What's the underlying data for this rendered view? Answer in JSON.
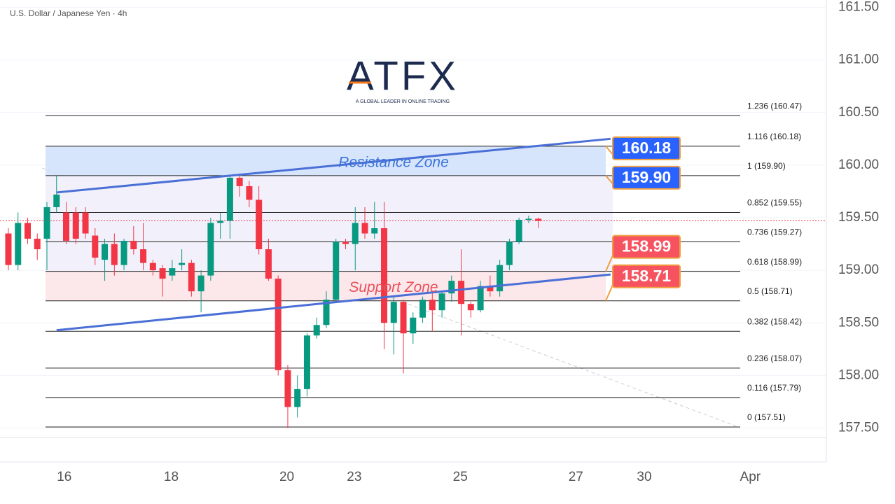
{
  "chart_data": {
    "type": "candlestick",
    "title": "U.S. Dollar / Japanese Yen · 4h",
    "logo": {
      "name": "ATFX",
      "tagline": "A GLOBAL LEADER IN ONLINE TRADING"
    },
    "x": [
      0,
      1,
      2,
      3,
      4,
      5,
      6,
      7,
      8,
      9,
      10,
      11,
      12,
      13,
      14,
      15,
      16,
      17,
      18,
      19,
      20,
      21,
      22,
      23,
      24,
      25,
      26,
      27,
      28,
      29,
      30,
      31,
      32,
      33,
      34,
      35,
      36,
      37,
      38,
      39,
      40,
      41,
      42,
      43,
      44,
      45,
      46,
      47,
      48,
      49,
      50,
      51,
      52,
      53,
      54,
      55
    ],
    "open": [
      159.35,
      159.05,
      159.45,
      159.3,
      159.3,
      159.6,
      159.55,
      159.55,
      159.55,
      159.33,
      159.1,
      159.25,
      159.05,
      159.28,
      159.2,
      159.07,
      159.02,
      158.95,
      159.05,
      159.07,
      158.8,
      158.95,
      159.45,
      159.47,
      159.88,
      159.8,
      159.67,
      159.2,
      158.92,
      158.05,
      157.7,
      157.87,
      158.38,
      158.48,
      158.72,
      159.27,
      159.25,
      159.45,
      159.35,
      159.4,
      158.5,
      158.7,
      158.4,
      158.55,
      158.72,
      158.62,
      158.78,
      158.9,
      158.68,
      158.62,
      158.85,
      158.8,
      159.05,
      159.27,
      159.48,
      159.49
    ],
    "high": [
      159.4,
      159.55,
      159.5,
      159.35,
      159.65,
      159.9,
      159.65,
      159.6,
      159.6,
      159.4,
      159.3,
      159.35,
      159.3,
      159.42,
      159.45,
      159.1,
      159.05,
      159.1,
      159.2,
      159.1,
      159.0,
      159.5,
      159.55,
      159.9,
      159.9,
      159.85,
      159.8,
      159.3,
      158.95,
      158.1,
      158.0,
      158.4,
      158.55,
      158.8,
      159.3,
      159.3,
      159.6,
      159.6,
      159.65,
      159.65,
      158.75,
      158.72,
      158.6,
      158.75,
      158.8,
      158.8,
      158.95,
      159.2,
      158.7,
      158.9,
      158.95,
      159.1,
      159.3,
      159.5,
      159.52,
      159.5
    ],
    "low": [
      159.0,
      159.0,
      159.25,
      159.1,
      159.0,
      159.55,
      159.25,
      159.25,
      159.3,
      159.05,
      158.9,
      158.95,
      159.0,
      159.15,
      159.0,
      158.95,
      158.75,
      158.9,
      159.0,
      158.75,
      158.6,
      158.9,
      159.3,
      159.3,
      159.7,
      159.6,
      159.15,
      158.9,
      158.0,
      157.5,
      157.6,
      157.8,
      158.35,
      158.45,
      158.7,
      159.2,
      159.0,
      159.3,
      159.3,
      158.25,
      158.2,
      158.02,
      158.3,
      158.5,
      158.42,
      158.55,
      158.7,
      158.38,
      158.55,
      158.6,
      158.75,
      158.75,
      159.0,
      159.25,
      159.45,
      159.4
    ],
    "close": [
      159.05,
      159.45,
      159.3,
      159.2,
      159.6,
      159.72,
      159.28,
      159.3,
      159.35,
      159.12,
      159.25,
      159.05,
      159.28,
      159.2,
      159.07,
      159.0,
      158.92,
      159.02,
      159.07,
      158.8,
      158.95,
      159.45,
      159.47,
      159.88,
      159.8,
      159.67,
      159.2,
      158.92,
      158.05,
      157.7,
      157.87,
      158.38,
      158.48,
      158.72,
      159.27,
      159.25,
      159.45,
      159.35,
      159.4,
      158.5,
      158.7,
      158.4,
      158.55,
      158.72,
      158.62,
      158.78,
      158.9,
      158.68,
      158.62,
      158.85,
      158.8,
      159.05,
      159.27,
      159.48,
      159.49,
      159.47
    ],
    "up_color": "#089981",
    "down_color": "#f23645",
    "last_price": 159.47,
    "xlim": [
      -0.87,
      84.9
    ],
    "xticks": [
      {
        "value": 5.8,
        "label": "16"
      },
      {
        "value": 16.9,
        "label": "18"
      },
      {
        "value": 28.9,
        "label": "20"
      },
      {
        "value": 35.9,
        "label": "23"
      },
      {
        "value": 46.9,
        "label": "25"
      },
      {
        "value": 58.9,
        "label": "27"
      },
      {
        "value": 66,
        "label": "30"
      },
      {
        "value": 77,
        "label": "Apr"
      }
    ],
    "ylim": [
      157.41,
      161.57
    ],
    "yticks": [
      {
        "value": 157.5,
        "label": "157.50"
      },
      {
        "value": 158,
        "label": "158.00"
      },
      {
        "value": 158.5,
        "label": "158.50"
      },
      {
        "value": 159,
        "label": "159.00"
      },
      {
        "value": 159.5,
        "label": "159.50"
      },
      {
        "value": 160,
        "label": "160.00"
      },
      {
        "value": 160.5,
        "label": "160.50"
      },
      {
        "value": 161,
        "label": "161.00"
      },
      {
        "value": 161.5,
        "label": "161.50"
      }
    ],
    "grid": true,
    "fib_levels": [
      {
        "label": "1.236 (160.47)",
        "value": 160.47
      },
      {
        "label": "1.116 (160.18)",
        "value": 160.18
      },
      {
        "label": "1 (159.90)",
        "value": 159.9
      },
      {
        "label": "0.852 (159.55)",
        "value": 159.55
      },
      {
        "label": "0.736 (159.27)",
        "value": 159.27
      },
      {
        "label": "0.618 (158.99)",
        "value": 158.99
      },
      {
        "label": "0.5 (158.71)",
        "value": 158.71
      },
      {
        "label": "0.382 (158.42)",
        "value": 158.42
      },
      {
        "label": "0.236 (158.07)",
        "value": 158.07
      },
      {
        "label": "0.116 (157.79)",
        "value": 157.79
      },
      {
        "label": "0 (157.51)",
        "value": 157.51
      }
    ],
    "zones": [
      {
        "name": "Resistance Zone",
        "low": 159.9,
        "high": 160.18,
        "color": "#cfe0fb",
        "text_color": "#3b73d9"
      },
      {
        "name": "Support Zone",
        "low": 158.71,
        "high": 158.99,
        "color": "#fbe3e6",
        "text_color": "#e8505b"
      }
    ],
    "trendlines": [
      {
        "x": [
          5,
          62.5
        ],
        "y": [
          159.74,
          160.25
        ]
      },
      {
        "x": [
          5,
          62.5
        ],
        "y": [
          158.43,
          158.96
        ]
      }
    ],
    "badges": [
      {
        "value": 160.18,
        "label": "160.18",
        "color": "#2962ff"
      },
      {
        "value": 159.9,
        "label": "159.90",
        "color": "#2962ff"
      },
      {
        "value": 158.99,
        "label": "158.99",
        "color": "#f7525f"
      },
      {
        "value": 158.71,
        "label": "158.71",
        "color": "#f7525f"
      }
    ]
  }
}
